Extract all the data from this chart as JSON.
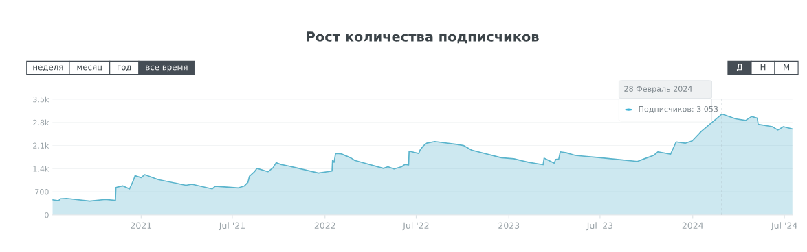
{
  "chart_data": {
    "type": "area",
    "title": "Рост количества подписчиков",
    "annotations": [
      "неделя",
      "месяц",
      "год",
      "все время",
      "Д",
      "Н",
      "М",
      "28 Февраль 2024",
      "Подписчиков: 3 053"
    ],
    "series": [
      {
        "color": "#5ab4cc",
        "x": [
          "2020-07-09",
          "2020-07-21",
          "2020-07-25",
          "2020-08-06",
          "2020-09-21",
          "2020-10-22",
          "2020-11-11",
          "2020-11-12",
          "2020-11-19",
          "2020-11-26",
          "2020-12-09",
          "2020-12-16",
          "2020-12-20",
          "2021-01-01",
          "2021-01-08",
          "2021-02-04",
          "2021-03-31",
          "2021-04-12",
          "2021-05-22",
          "2021-05-28",
          "2021-07-13",
          "2021-07-25",
          "2021-08-01",
          "2021-08-04",
          "2021-08-14",
          "2021-08-19",
          "2021-09-10",
          "2021-09-20",
          "2021-09-26",
          "2021-10-05",
          "2021-10-21",
          "2021-11-04",
          "2021-12-19",
          "2022-01-15",
          "2022-01-16",
          "2022-01-19",
          "2022-01-22",
          "2022-02-02",
          "2022-02-22",
          "2022-03-01",
          "2022-04-27",
          "2022-05-06",
          "2022-05-18",
          "2022-06-02",
          "2022-06-09",
          "2022-06-16",
          "2022-06-17",
          "2022-07-06",
          "2022-07-09",
          "2022-07-16",
          "2022-07-22",
          "2022-08-07",
          "2022-09-22",
          "2022-10-03",
          "2022-10-19",
          "2022-12-17",
          "2023-01-11",
          "2023-02-10",
          "2023-03-10",
          "2023-03-12",
          "2023-04-01",
          "2023-04-04",
          "2023-04-10",
          "2023-04-13",
          "2023-04-25",
          "2023-05-13",
          "2023-07-02",
          "2023-08-12",
          "2023-09-13",
          "2023-09-27",
          "2023-10-15",
          "2023-10-24",
          "2023-11-18",
          "2023-11-29",
          "2023-12-17",
          "2023-12-31",
          "2024-01-18",
          "2024-02-28",
          "2024-03-26",
          "2024-04-15",
          "2024-04-27",
          "2024-05-08",
          "2024-05-10",
          "2024-06-07",
          "2024-06-18",
          "2024-06-29",
          "2024-07-17"
        ],
        "values": [
          460,
          430,
          490,
          500,
          420,
          470,
          440,
          830,
          860,
          880,
          790,
          1020,
          1190,
          1130,
          1220,
          1070,
          900,
          930,
          790,
          870,
          820,
          880,
          990,
          1170,
          1310,
          1410,
          1310,
          1430,
          1580,
          1530,
          1480,
          1430,
          1270,
          1330,
          1660,
          1590,
          1860,
          1850,
          1720,
          1650,
          1410,
          1460,
          1390,
          1460,
          1530,
          1510,
          1930,
          1860,
          1970,
          2100,
          2170,
          2220,
          2130,
          2100,
          1960,
          1730,
          1700,
          1590,
          1520,
          1720,
          1570,
          1680,
          1690,
          1910,
          1880,
          1800,
          1730,
          1670,
          1620,
          1700,
          1800,
          1910,
          1840,
          2210,
          2170,
          2240,
          2530,
          3053,
          2910,
          2860,
          2980,
          2930,
          2740,
          2670,
          2570,
          2670,
          2600
        ]
      }
    ],
    "xlim": [
      "2020-07-09",
      "2024-07-17"
    ],
    "xticks": [
      {
        "value": "2021-01-01",
        "label": "2021"
      },
      {
        "value": "2021-07-01",
        "label": "Jul '21"
      },
      {
        "value": "2022-01-01",
        "label": "2022"
      },
      {
        "value": "2022-07-01",
        "label": "Jul '22"
      },
      {
        "value": "2023-01-01",
        "label": "2023"
      },
      {
        "value": "2023-07-01",
        "label": "Jul '23"
      },
      {
        "value": "2024-01-01",
        "label": "2024"
      },
      {
        "value": "2024-07-01",
        "label": "Jul '24"
      }
    ],
    "ylim": [
      0,
      3500
    ],
    "yticks": [
      0,
      700,
      {
        "value": 1400,
        "label": "1.4k"
      },
      {
        "value": 2100,
        "label": "2.1k"
      },
      {
        "value": 2800,
        "label": "2.8k"
      },
      {
        "value": 3500,
        "label": "3.5k"
      }
    ],
    "ref_lines": [
      {
        "axis": "x",
        "value": "2024-02-28",
        "label": null,
        "color": "#a9b4bb",
        "line_style": "dashed"
      }
    ],
    "grid": "y"
  }
}
